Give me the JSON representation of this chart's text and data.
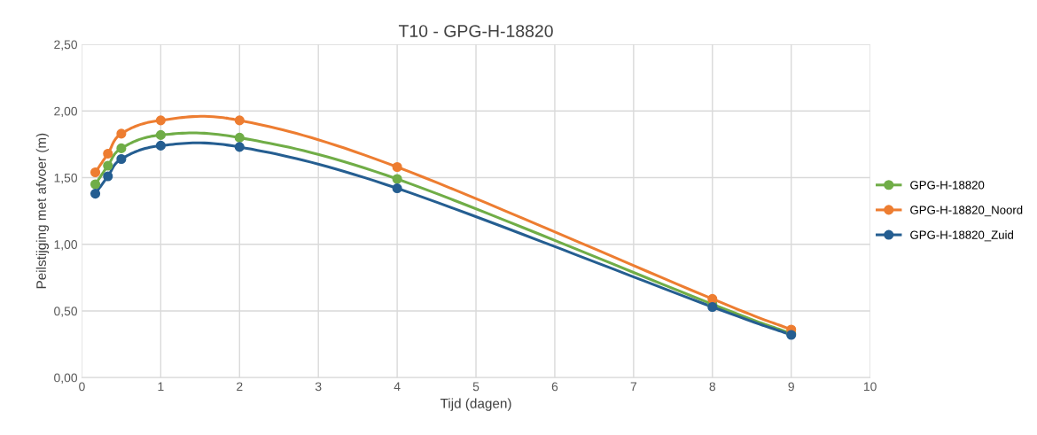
{
  "chart_data": {
    "type": "line",
    "title": "T10 - GPG-H-18820",
    "xlabel": "Tijd (dagen)",
    "ylabel": "Peilstijging met afvoer (m)",
    "x": [
      0.17,
      0.33,
      0.5,
      1,
      2,
      4,
      8,
      9
    ],
    "series": [
      {
        "name": "GPG-H-18820",
        "color": "#70ad47",
        "values": [
          1.45,
          1.59,
          1.72,
          1.82,
          1.8,
          1.49,
          0.55,
          0.33
        ]
      },
      {
        "name": "GPG-H-18820_Noord",
        "color": "#ed7d31",
        "values": [
          1.54,
          1.68,
          1.83,
          1.93,
          1.93,
          1.58,
          0.59,
          0.36
        ]
      },
      {
        "name": "GPG-H-18820_Zuid",
        "color": "#255e91",
        "values": [
          1.38,
          1.51,
          1.64,
          1.74,
          1.73,
          1.42,
          0.53,
          0.32
        ]
      }
    ],
    "xlim": [
      0,
      10
    ],
    "xticks": [
      0,
      1,
      2,
      3,
      4,
      5,
      6,
      7,
      8,
      9,
      10
    ],
    "ylim": [
      0,
      2.5
    ],
    "yticks": [
      {
        "value": 0,
        "label": "0,00"
      },
      {
        "value": 0.5,
        "label": "0,50"
      },
      {
        "value": 1,
        "label": "1,00"
      },
      {
        "value": 1.5,
        "label": "1,50"
      },
      {
        "value": 2,
        "label": "2,00"
      },
      {
        "value": 2.5,
        "label": "2,50"
      }
    ],
    "grid": true,
    "legend": "right",
    "marker": "circle",
    "line_style": "solid"
  }
}
